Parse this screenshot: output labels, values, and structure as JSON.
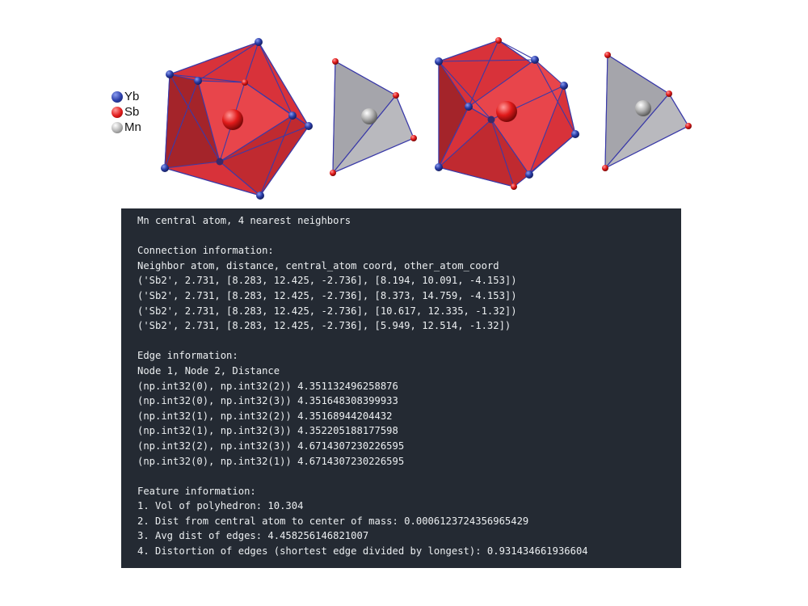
{
  "legend": [
    {
      "label": "Yb",
      "color": "#2b3ea8"
    },
    {
      "label": "Sb",
      "color": "#e11a1a"
    },
    {
      "label": "Mn",
      "color": "#9e9e9e"
    }
  ],
  "colors": {
    "sb_polyhedron": "#d8323a",
    "mn_tetrahedron": "#b9b9be",
    "edge_line": "#3a3aa8",
    "terminal_bg": "#242a33",
    "terminal_text": "#eceff1"
  },
  "terminal": {
    "header": "Mn central atom, 4 nearest neighbors",
    "connection_title": "Connection information:",
    "connection_columns": "Neighbor atom, distance, central_atom coord, other_atom_coord",
    "connection_rows": [
      "('Sb2', 2.731, [8.283, 12.425, -2.736], [8.194, 10.091, -4.153])",
      "('Sb2', 2.731, [8.283, 12.425, -2.736], [8.373, 14.759, -4.153])",
      "('Sb2', 2.731, [8.283, 12.425, -2.736], [10.617, 12.335, -1.32])",
      "('Sb2', 2.731, [8.283, 12.425, -2.736], [5.949, 12.514, -1.32])"
    ],
    "edge_title": "Edge information:",
    "edge_columns": "Node 1, Node 2, Distance",
    "edge_rows": [
      "(np.int32(0), np.int32(2)) 4.351132496258876",
      "(np.int32(0), np.int32(3)) 4.351648308399933",
      "(np.int32(1), np.int32(2)) 4.35168944204432",
      "(np.int32(1), np.int32(3)) 4.352205188177598",
      "(np.int32(2), np.int32(3)) 4.6714307230226595",
      "(np.int32(0), np.int32(1)) 4.6714307230226595"
    ],
    "feature_title": "Feature information:",
    "feature_rows": [
      "1. Vol of polyhedron: 10.304",
      "2. Dist from central atom to center of mass: 0.0006123724356965429",
      "3. Avg dist of edges: 4.458256146821007",
      "4. Distortion of edges (shortest edge divided by longest): 0.931434661936604"
    ]
  }
}
